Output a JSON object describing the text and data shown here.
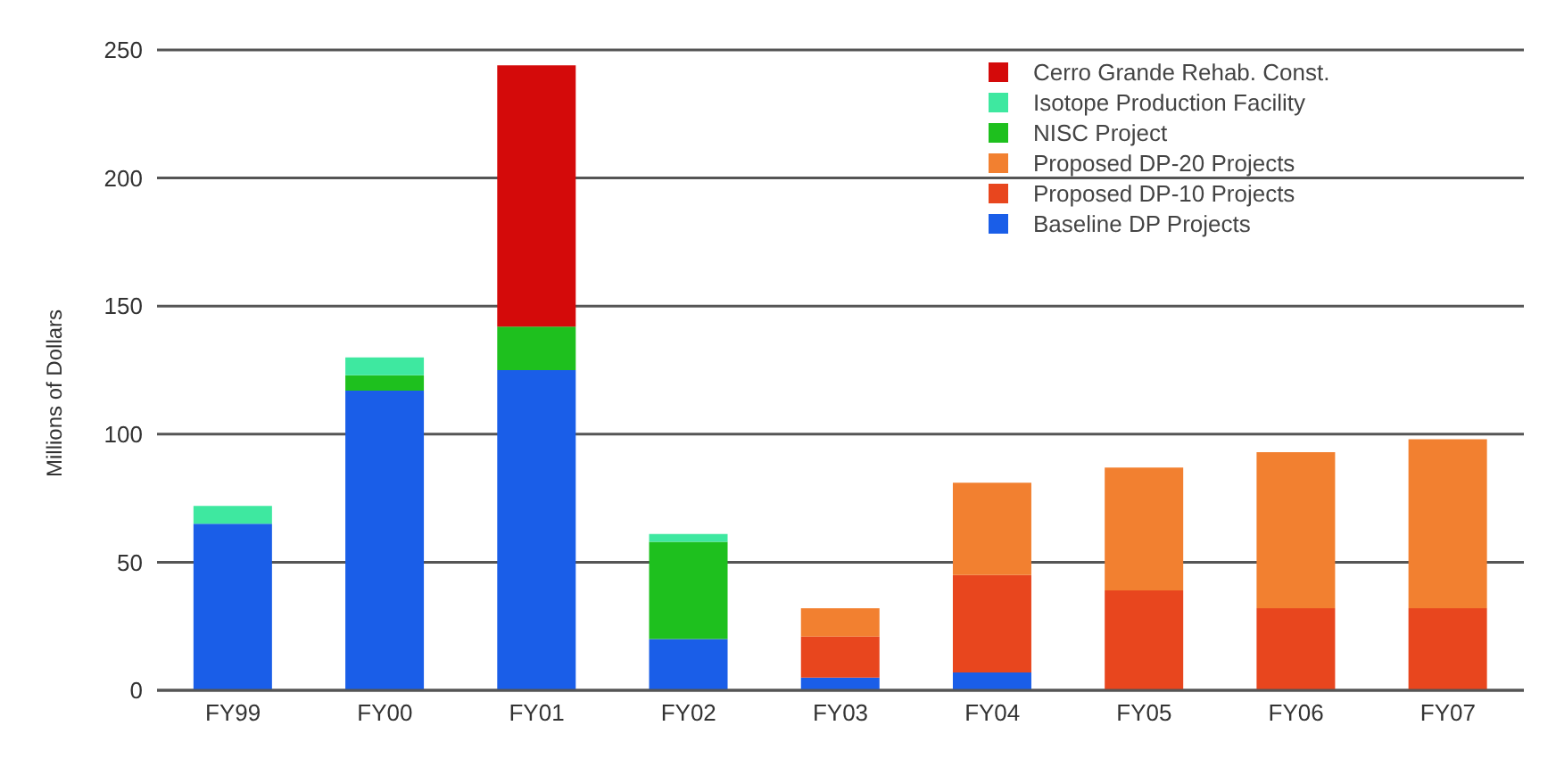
{
  "chart_data": {
    "type": "bar",
    "stacked": true,
    "ylabel": "Millions of Dollars",
    "categories": [
      "FY99",
      "FY00",
      "FY01",
      "FY02",
      "FY03",
      "FY04",
      "FY05",
      "FY06",
      "FY07"
    ],
    "series": [
      {
        "name": "Baseline DP Projects",
        "color": "#1a5ee8",
        "values": [
          65,
          117,
          125,
          20,
          5,
          7,
          0,
          0,
          0
        ]
      },
      {
        "name": "Proposed DP-10 Projects",
        "color": "#e8461e",
        "values": [
          0,
          0,
          0,
          0,
          16,
          38,
          39,
          32,
          32
        ]
      },
      {
        "name": "Proposed DP-20 Projects",
        "color": "#f28030",
        "values": [
          0,
          0,
          0,
          0,
          11,
          36,
          48,
          61,
          66
        ]
      },
      {
        "name": "NISC Project",
        "color": "#1ec01e",
        "values": [
          0,
          6,
          17,
          38,
          0,
          0,
          0,
          0,
          0
        ]
      },
      {
        "name": "Isotope Production Facility",
        "color": "#3ee8a0",
        "values": [
          7,
          7,
          0,
          3,
          0,
          0,
          0,
          0,
          0
        ]
      },
      {
        "name": "Cerro Grande Rehab. Const.",
        "color": "#d40a0a",
        "values": [
          0,
          0,
          102,
          0,
          0,
          0,
          0,
          0,
          0
        ]
      }
    ],
    "ylim": [
      0,
      250
    ],
    "yticks": [
      0,
      50,
      100,
      150,
      200,
      250
    ],
    "grid": "y",
    "legend": "top right"
  }
}
